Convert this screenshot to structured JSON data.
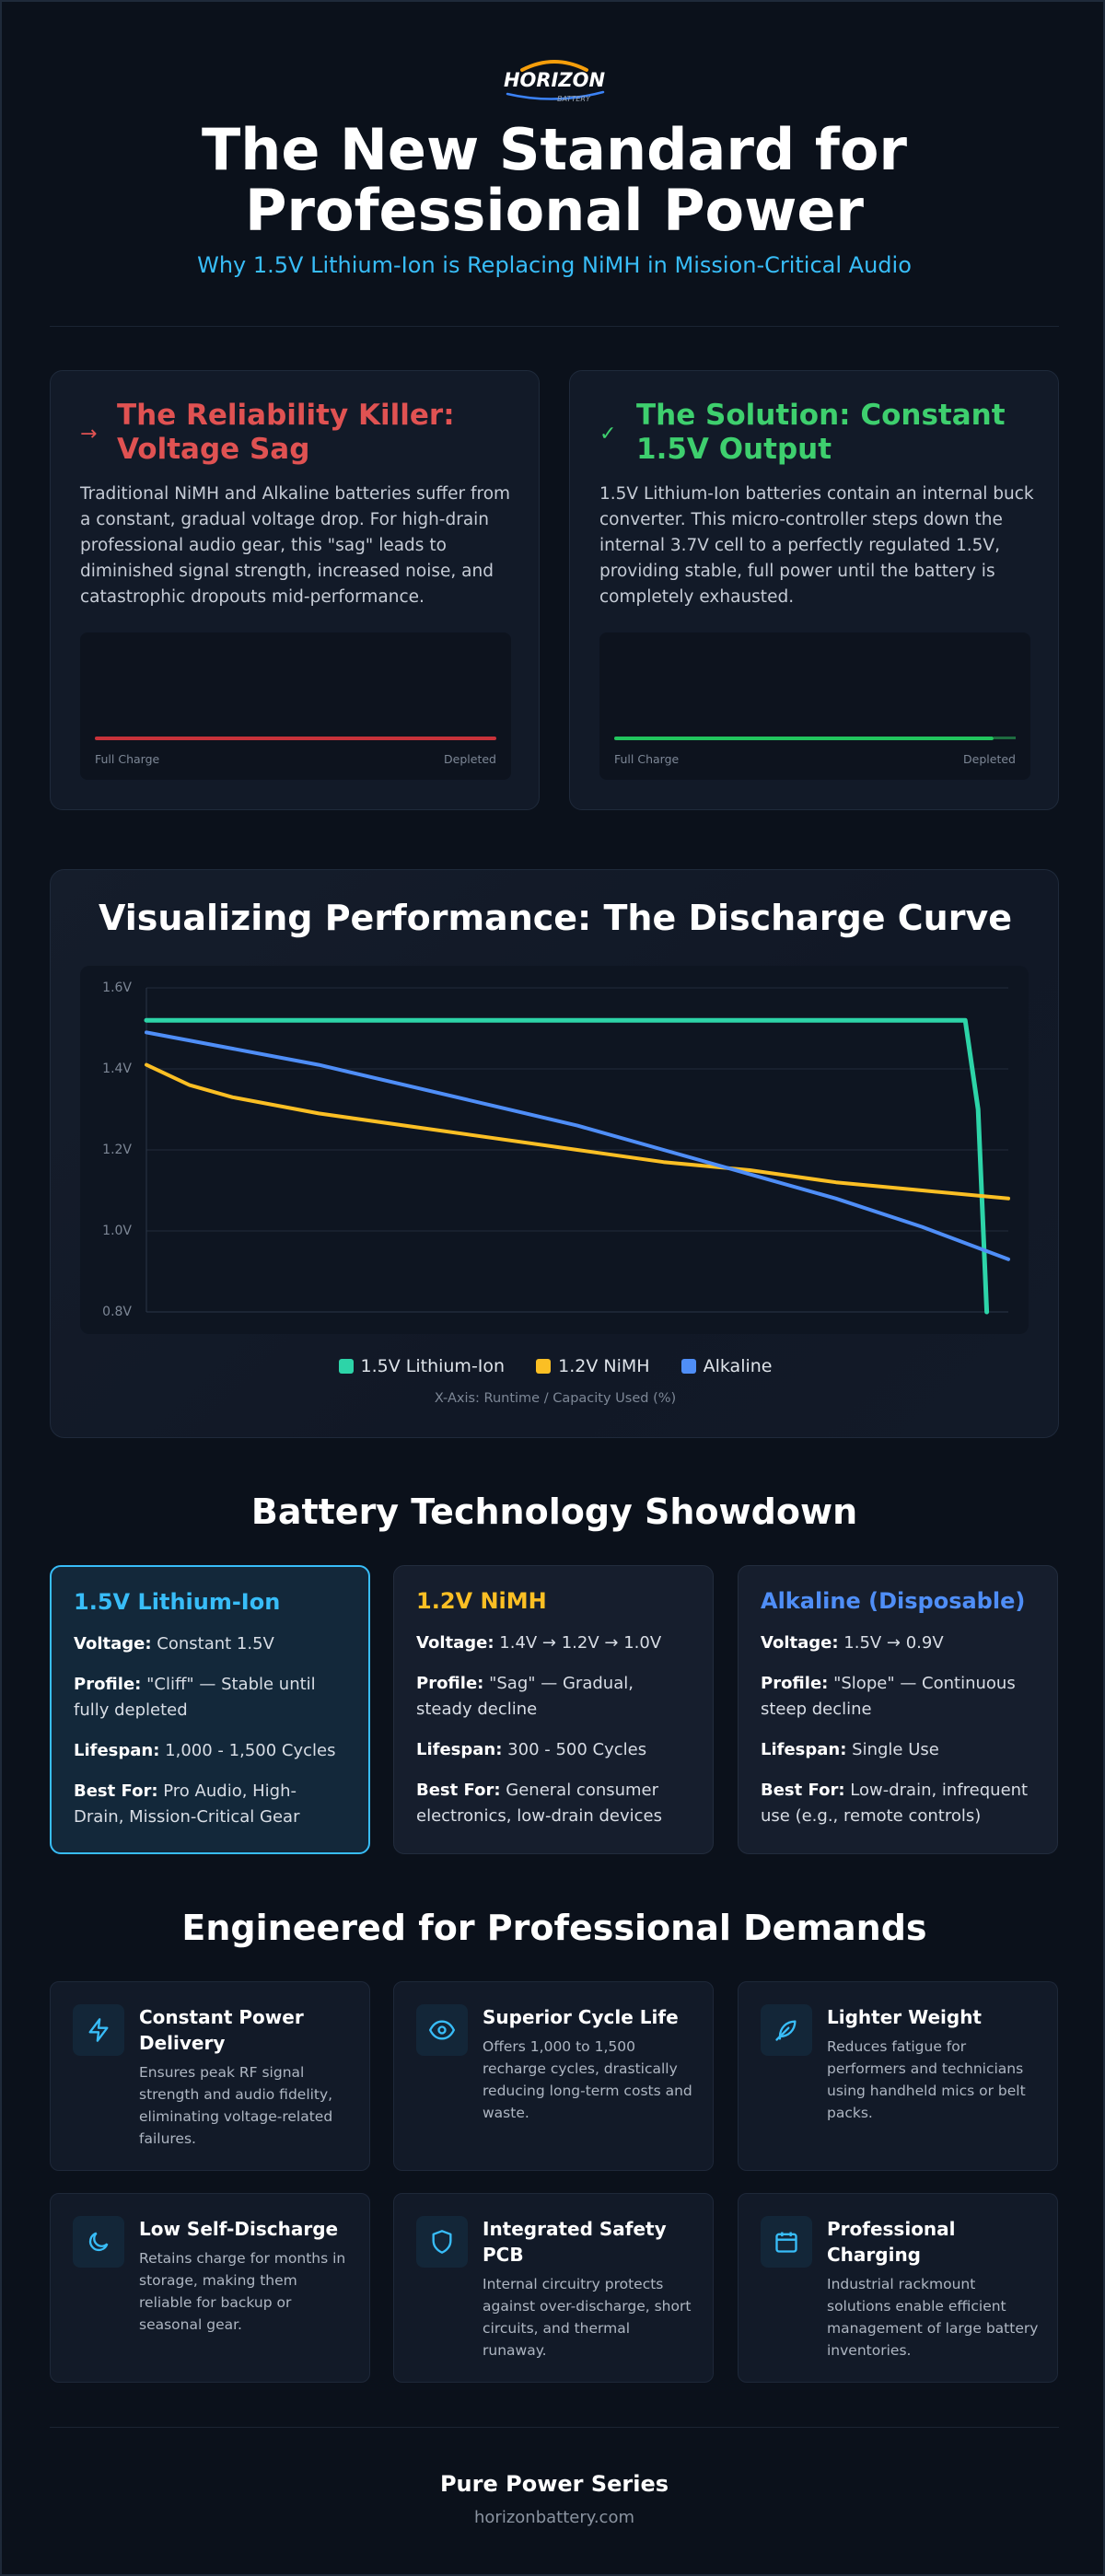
{
  "brand": {
    "logo_text": "HORIZON",
    "logo_sub": "BATTERY"
  },
  "hero": {
    "title_line1": "The New Standard for",
    "title_line2": "Professional Power",
    "subtitle": "Why 1.5V Lithium-Ion is Replacing NiMH in Mission-Critical Audio"
  },
  "problem": {
    "title_line1": "The Reliability Killer:",
    "title_line2": "Voltage Sag",
    "icon": "arrow-right-icon",
    "body": "Traditional NiMH and Alkaline batteries suffer from a constant, gradual voltage drop. For high-drain professional audio gear, this \"sag\" leads to diminished signal strength, increased noise, and catastrophic dropouts mid-performance.",
    "chart_left": "Full Charge",
    "chart_right": "Depleted",
    "color": "#e05252"
  },
  "solution": {
    "title_line1": "The Solution: Constant",
    "title_line2": "1.5V Output",
    "icon": "check-icon",
    "body": "1.5V Lithium-Ion batteries contain an internal buck converter. This micro-controller steps down the internal 3.7V cell to a perfectly regulated 1.5V, providing stable, full power until the battery is completely exhausted.",
    "chart_left": "Full Charge",
    "chart_right": "Depleted",
    "color": "#3ecf6e"
  },
  "discharge": {
    "title": "Visualizing Performance: The Discharge Curve",
    "x_note": "X-Axis: Runtime / Capacity Used (%)"
  },
  "chart_data": {
    "type": "line",
    "title": "Visualizing Performance: The Discharge Curve",
    "xlabel": "X-Axis: Runtime / Capacity Used (%)",
    "ylabel": "",
    "xlim": [
      0,
      100
    ],
    "ylim": [
      0.8,
      1.6
    ],
    "yticks": [
      "1.6V",
      "1.4V",
      "1.2V",
      "1.0V",
      "0.8V"
    ],
    "grid": true,
    "legend": "bottom",
    "series": [
      {
        "name": "1.5V Lithium-Ion",
        "color": "#2dd4a8",
        "x": [
          0,
          10,
          20,
          30,
          40,
          50,
          60,
          70,
          80,
          90,
          95,
          96.5,
          97.5
        ],
        "y": [
          1.52,
          1.52,
          1.52,
          1.52,
          1.52,
          1.52,
          1.52,
          1.52,
          1.52,
          1.52,
          1.52,
          1.3,
          0.8
        ]
      },
      {
        "name": "1.2V NiMH",
        "color": "#fbbf24",
        "x": [
          0,
          5,
          10,
          20,
          30,
          40,
          50,
          60,
          70,
          80,
          90,
          100
        ],
        "y": [
          1.41,
          1.36,
          1.33,
          1.29,
          1.26,
          1.23,
          1.2,
          1.17,
          1.15,
          1.12,
          1.1,
          1.08
        ]
      },
      {
        "name": "Alkaline",
        "color": "#4f8ef7",
        "x": [
          0,
          10,
          20,
          30,
          40,
          50,
          60,
          70,
          80,
          90,
          100
        ],
        "y": [
          1.49,
          1.45,
          1.41,
          1.36,
          1.31,
          1.26,
          1.2,
          1.14,
          1.08,
          1.01,
          0.93
        ]
      }
    ]
  },
  "showdown": {
    "title": "Battery Technology Showdown",
    "cards": [
      {
        "name": "1.5V Lithium-Ion",
        "color": "#38bdf8",
        "voltage_label": "Voltage:",
        "voltage": "Constant 1.5V",
        "profile_label": "Profile:",
        "profile": "\"Cliff\" — Stable until fully depleted",
        "lifespan_label": "Lifespan:",
        "lifespan": "1,000 - 1,500 Cycles",
        "best_label": "Best For:",
        "best": "Pro Audio, High-Drain, Mission-Critical Gear"
      },
      {
        "name": "1.2V NiMH",
        "color": "#fbbf24",
        "voltage_label": "Voltage:",
        "voltage": "1.4V → 1.2V → 1.0V",
        "profile_label": "Profile:",
        "profile": "\"Sag\" — Gradual, steady decline",
        "lifespan_label": "Lifespan:",
        "lifespan": "300 - 500 Cycles",
        "best_label": "Best For:",
        "best": "General consumer electronics, low-drain devices"
      },
      {
        "name": "Alkaline (Disposable)",
        "color": "#4f8ef7",
        "voltage_label": "Voltage:",
        "voltage": "1.5V → 0.9V",
        "profile_label": "Profile:",
        "profile": "\"Slope\" — Continuous steep decline",
        "lifespan_label": "Lifespan:",
        "lifespan": "Single Use",
        "best_label": "Best For:",
        "best": "Low-drain, infrequent use (e.g., remote controls)"
      }
    ]
  },
  "features": {
    "title": "Engineered for Professional Demands",
    "items": [
      {
        "icon": "lightning-icon",
        "title": "Constant Power Delivery",
        "body": "Ensures peak RF signal strength and audio fidelity, eliminating voltage-related failures."
      },
      {
        "icon": "eye-icon",
        "title": "Superior Cycle Life",
        "body": "Offers 1,000 to 1,500 recharge cycles, drastically reducing long-term costs and waste."
      },
      {
        "icon": "feather-icon",
        "title": "Lighter Weight",
        "body": "Reduces fatigue for performers and technicians using handheld mics or belt packs."
      },
      {
        "icon": "moon-icon",
        "title": "Low Self-Discharge",
        "body": "Retains charge for months in storage, making them reliable for backup or seasonal gear."
      },
      {
        "icon": "shield-icon",
        "title": "Integrated Safety PCB",
        "body": "Internal circuitry protects against over-discharge, short circuits, and thermal runaway."
      },
      {
        "icon": "calendar-icon",
        "title": "Professional Charging",
        "body": "Industrial rackmount solutions enable efficient management of large battery inventories."
      }
    ]
  },
  "footer": {
    "series": "Pure Power Series",
    "url": "horizonbattery.com"
  }
}
